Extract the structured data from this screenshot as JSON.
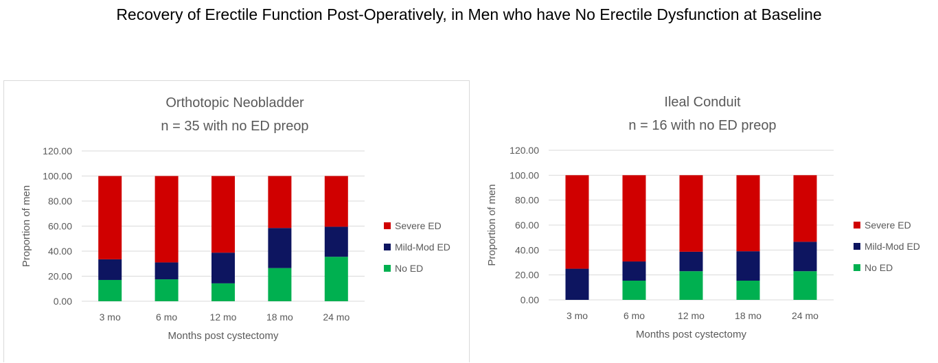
{
  "page_title": "Recovery of Erectile Function Post-Operatively, in Men who have No Erectile Dysfunction at Baseline",
  "colors": {
    "severe": "#d00000",
    "mild_mod": "#0d1560",
    "no_ed": "#00b050",
    "grid": "#d9d9d9",
    "text": "#595959"
  },
  "chart_data": [
    {
      "type": "bar",
      "stacked": true,
      "title_lines": [
        "Orthotopic Neobladder",
        "n = 35 with no ED preop"
      ],
      "xlabel": "Months post cystectomy",
      "ylabel": "Proportion of men",
      "ylim": [
        0,
        120
      ],
      "yticks": [
        "0.00",
        "20.00",
        "40.00",
        "60.00",
        "80.00",
        "100.00",
        "120.00"
      ],
      "categories": [
        "3 mo",
        "6 mo",
        "12 mo",
        "18 mo",
        "24 mo"
      ],
      "legend_position": "right",
      "series": [
        {
          "name": "No ED",
          "values": [
            17,
            17.5,
            14.3,
            26.5,
            35.5
          ]
        },
        {
          "name": "Mild-Mod ED",
          "values": [
            16.5,
            13.5,
            24.5,
            32,
            24
          ]
        },
        {
          "name": "Severe ED",
          "values": [
            66.5,
            69,
            61.2,
            41.5,
            40.5
          ]
        }
      ],
      "legend": [
        "Severe ED",
        "Mild-Mod ED",
        "No ED"
      ]
    },
    {
      "type": "bar",
      "stacked": true,
      "title_lines": [
        "Ileal Conduit",
        "n = 16 with no ED preop"
      ],
      "xlabel": "Months post cystectomy",
      "ylabel": "Proportion of men",
      "ylim": [
        0,
        120
      ],
      "yticks": [
        "0.00",
        "20.00",
        "40.00",
        "60.00",
        "80.00",
        "100.00",
        "120.00"
      ],
      "categories": [
        "3 mo",
        "6 mo",
        "12 mo",
        "18 mo",
        "24 mo"
      ],
      "legend_position": "right",
      "series": [
        {
          "name": "No ED",
          "values": [
            0,
            15.4,
            23,
            15.4,
            23
          ]
        },
        {
          "name": "Mild-Mod ED",
          "values": [
            25,
            15.4,
            15.6,
            23.6,
            23.6
          ]
        },
        {
          "name": "Severe ED",
          "values": [
            75,
            69.2,
            61.4,
            61,
            53.4
          ]
        }
      ],
      "legend": [
        "Severe ED",
        "Mild-Mod ED",
        "No ED"
      ]
    }
  ]
}
